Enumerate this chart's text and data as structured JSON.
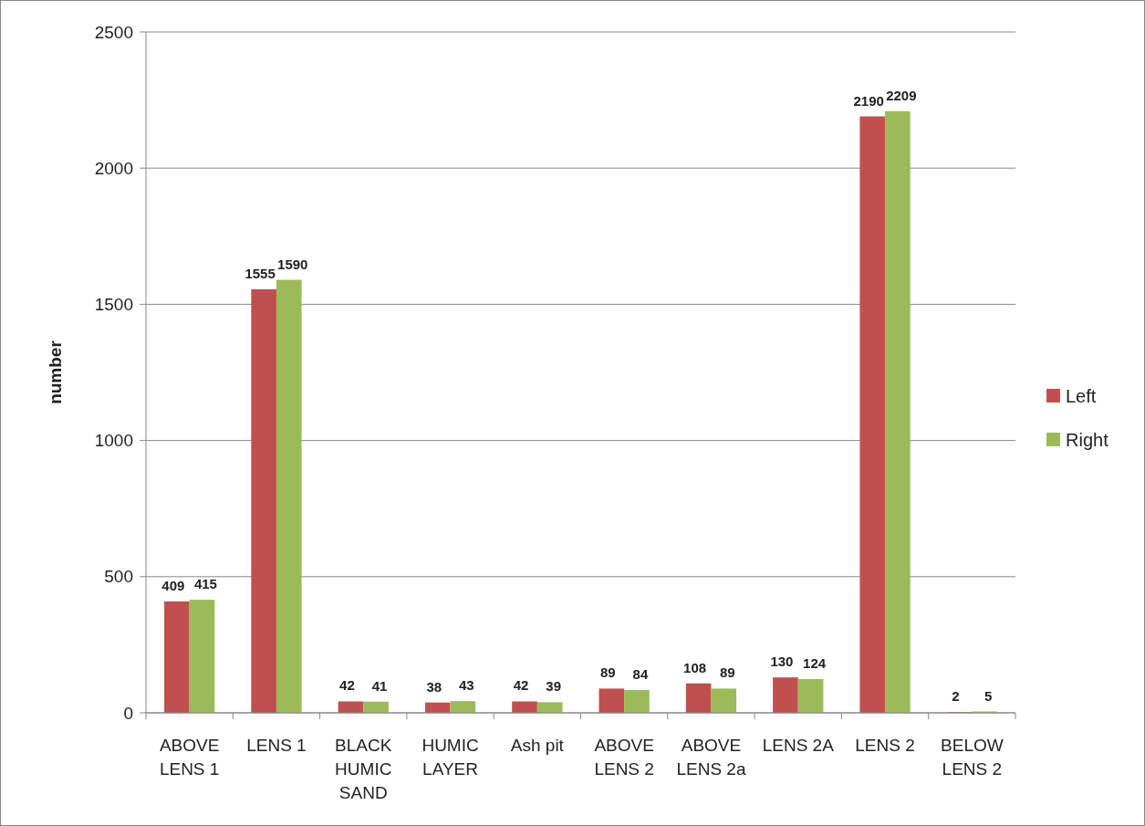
{
  "chart_data": {
    "type": "bar",
    "ylabel": "number",
    "categories": [
      "ABOVE LENS 1",
      "LENS 1",
      "BLACK HUMIC SAND",
      "HUMIC LAYER",
      "Ash pit",
      "ABOVE LENS 2",
      "ABOVE LENS 2a",
      "LENS 2A",
      "LENS 2",
      "BELOW LENS 2"
    ],
    "series": [
      {
        "name": "Left",
        "color": "#c0504d",
        "values": [
          409,
          1555,
          42,
          38,
          42,
          89,
          108,
          130,
          2190,
          2
        ]
      },
      {
        "name": "Right",
        "color": "#9bbb59",
        "values": [
          415,
          1590,
          41,
          43,
          39,
          84,
          89,
          124,
          2209,
          5
        ]
      }
    ],
    "ylim": [
      0,
      2500
    ],
    "yticks": [
      0,
      500,
      1000,
      1500,
      2000,
      2500
    ],
    "grid": "y",
    "legend": "right",
    "data_labels": true
  }
}
